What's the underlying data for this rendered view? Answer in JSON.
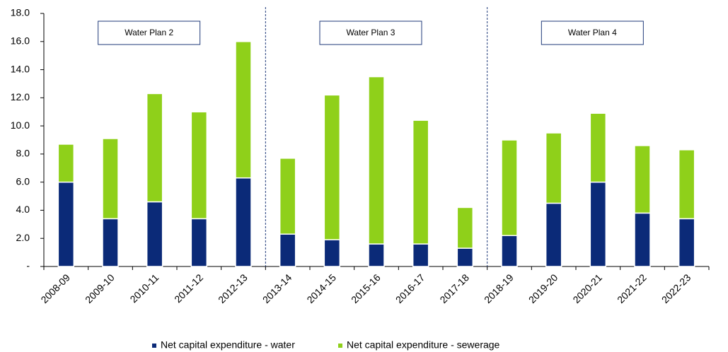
{
  "chart_data": {
    "type": "stacked-bar",
    "categories": [
      "2008-09",
      "2009-10",
      "2010-11",
      "2011-12",
      "2012-13",
      "2013-14",
      "2014-15",
      "2015-16",
      "2016-17",
      "2017-18",
      "2018-19",
      "2019-20",
      "2020-21",
      "2021-22",
      "2022-23"
    ],
    "series": [
      {
        "name": "Net capital expenditure - water",
        "color": "#0b2a78",
        "values": [
          6.0,
          3.4,
          4.6,
          3.4,
          6.3,
          2.3,
          1.9,
          1.6,
          1.6,
          1.3,
          2.2,
          4.5,
          6.0,
          3.8,
          3.4
        ]
      },
      {
        "name": "Net capital expenditure - sewerage",
        "color": "#8fd01a",
        "values": [
          2.7,
          5.7,
          7.7,
          7.6,
          9.7,
          5.4,
          10.3,
          11.9,
          8.8,
          2.9,
          6.8,
          5.0,
          4.9,
          4.8,
          4.9
        ]
      }
    ],
    "ylim": [
      0,
      18
    ],
    "yticks": [
      {
        "value": 0,
        "label": "-"
      },
      {
        "value": 2,
        "label": "2.0"
      },
      {
        "value": 4,
        "label": "4.0"
      },
      {
        "value": 6,
        "label": "6.0"
      },
      {
        "value": 8,
        "label": "8.0"
      },
      {
        "value": 10,
        "label": "10.0"
      },
      {
        "value": 12,
        "label": "12.0"
      },
      {
        "value": 14,
        "label": "14.0"
      },
      {
        "value": 16,
        "label": "16.0"
      },
      {
        "value": 18,
        "label": "18.0"
      }
    ],
    "annotations": [
      "Water Plan 2",
      "Water Plan 3",
      "Water Plan 4"
    ],
    "grid": false,
    "legend": "bottom"
  }
}
